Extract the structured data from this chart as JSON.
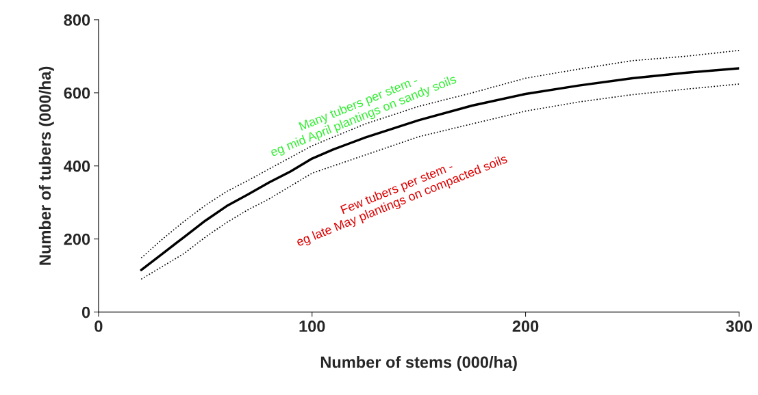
{
  "chart_data": {
    "type": "line",
    "xlabel": "Number of stems (000/ha)",
    "ylabel": "Number of tubers (000/ha)",
    "xlim": [
      0,
      300
    ],
    "xticks": [
      0,
      100,
      200,
      300
    ],
    "ylim": [
      0,
      800
    ],
    "yticks": [
      0,
      200,
      400,
      600,
      800
    ],
    "grid": false,
    "legend": false,
    "marker": "none",
    "series": [
      {
        "color": "#000000",
        "line_style": "solid",
        "x": [
          20,
          30,
          40,
          50,
          60,
          70,
          80,
          90,
          100,
          110,
          125,
          150,
          175,
          200,
          225,
          250,
          275,
          300
        ],
        "values": [
          115,
          160,
          205,
          250,
          290,
          322,
          355,
          385,
          420,
          445,
          478,
          525,
          565,
          597,
          620,
          640,
          655,
          667
        ]
      },
      {
        "color": "#000000",
        "line_style": "dotted",
        "x": [
          20,
          30,
          40,
          50,
          60,
          70,
          80,
          100,
          125,
          150,
          175,
          200,
          225,
          250,
          275,
          300
        ],
        "values": [
          148,
          200,
          248,
          292,
          330,
          360,
          392,
          455,
          515,
          563,
          600,
          640,
          665,
          688,
          700,
          716
        ]
      },
      {
        "color": "#000000",
        "line_style": "dotted",
        "x": [
          20,
          30,
          40,
          50,
          60,
          70,
          80,
          100,
          125,
          150,
          175,
          200,
          225,
          250,
          275,
          300
        ],
        "values": [
          90,
          125,
          160,
          205,
          245,
          280,
          310,
          380,
          430,
          480,
          515,
          550,
          575,
          595,
          610,
          624
        ]
      }
    ],
    "annotations": [
      "Many tubers per stem -\neg mid April plantings on sandy soils",
      "Few tubers per stem -\neg late May plantings on compacted soils"
    ]
  }
}
